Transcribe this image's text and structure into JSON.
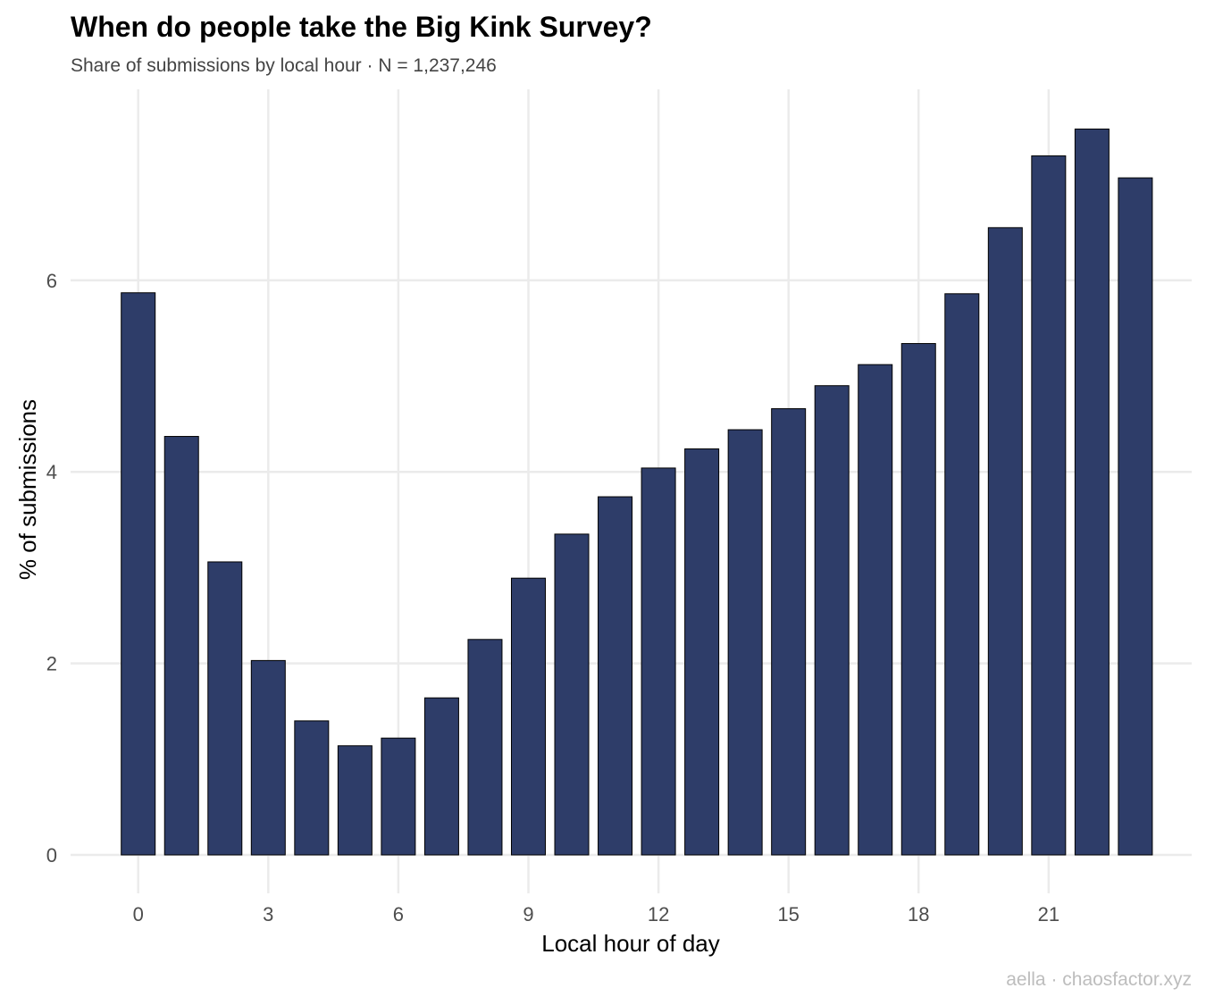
{
  "chart_data": {
    "type": "bar",
    "title": "When do people take the Big Kink Survey?",
    "subtitle": "Share of submissions by local hour · N = 1,237,246",
    "caption": "aella · chaosfactor.xyz",
    "xlabel": "Local hour of day",
    "ylabel": "% of submissions",
    "categories": [
      0,
      1,
      2,
      3,
      4,
      5,
      6,
      7,
      8,
      9,
      10,
      11,
      12,
      13,
      14,
      15,
      16,
      17,
      18,
      19,
      20,
      21,
      22,
      23
    ],
    "values": [
      5.87,
      4.37,
      3.06,
      2.03,
      1.4,
      1.14,
      1.22,
      1.64,
      2.25,
      2.89,
      3.35,
      3.74,
      4.04,
      4.24,
      4.44,
      4.66,
      4.9,
      5.12,
      5.34,
      5.86,
      6.55,
      7.3,
      7.58,
      7.07
    ],
    "x_ticks": [
      0,
      3,
      6,
      9,
      12,
      15,
      18,
      21
    ],
    "y_ticks": [
      0,
      2,
      4,
      6
    ],
    "ylim": [
      0,
      7.96
    ],
    "xlim": [
      -1.56,
      24.3
    ],
    "grid": true,
    "bar_color": "#2e3d69",
    "bar_outline": "#000000"
  }
}
